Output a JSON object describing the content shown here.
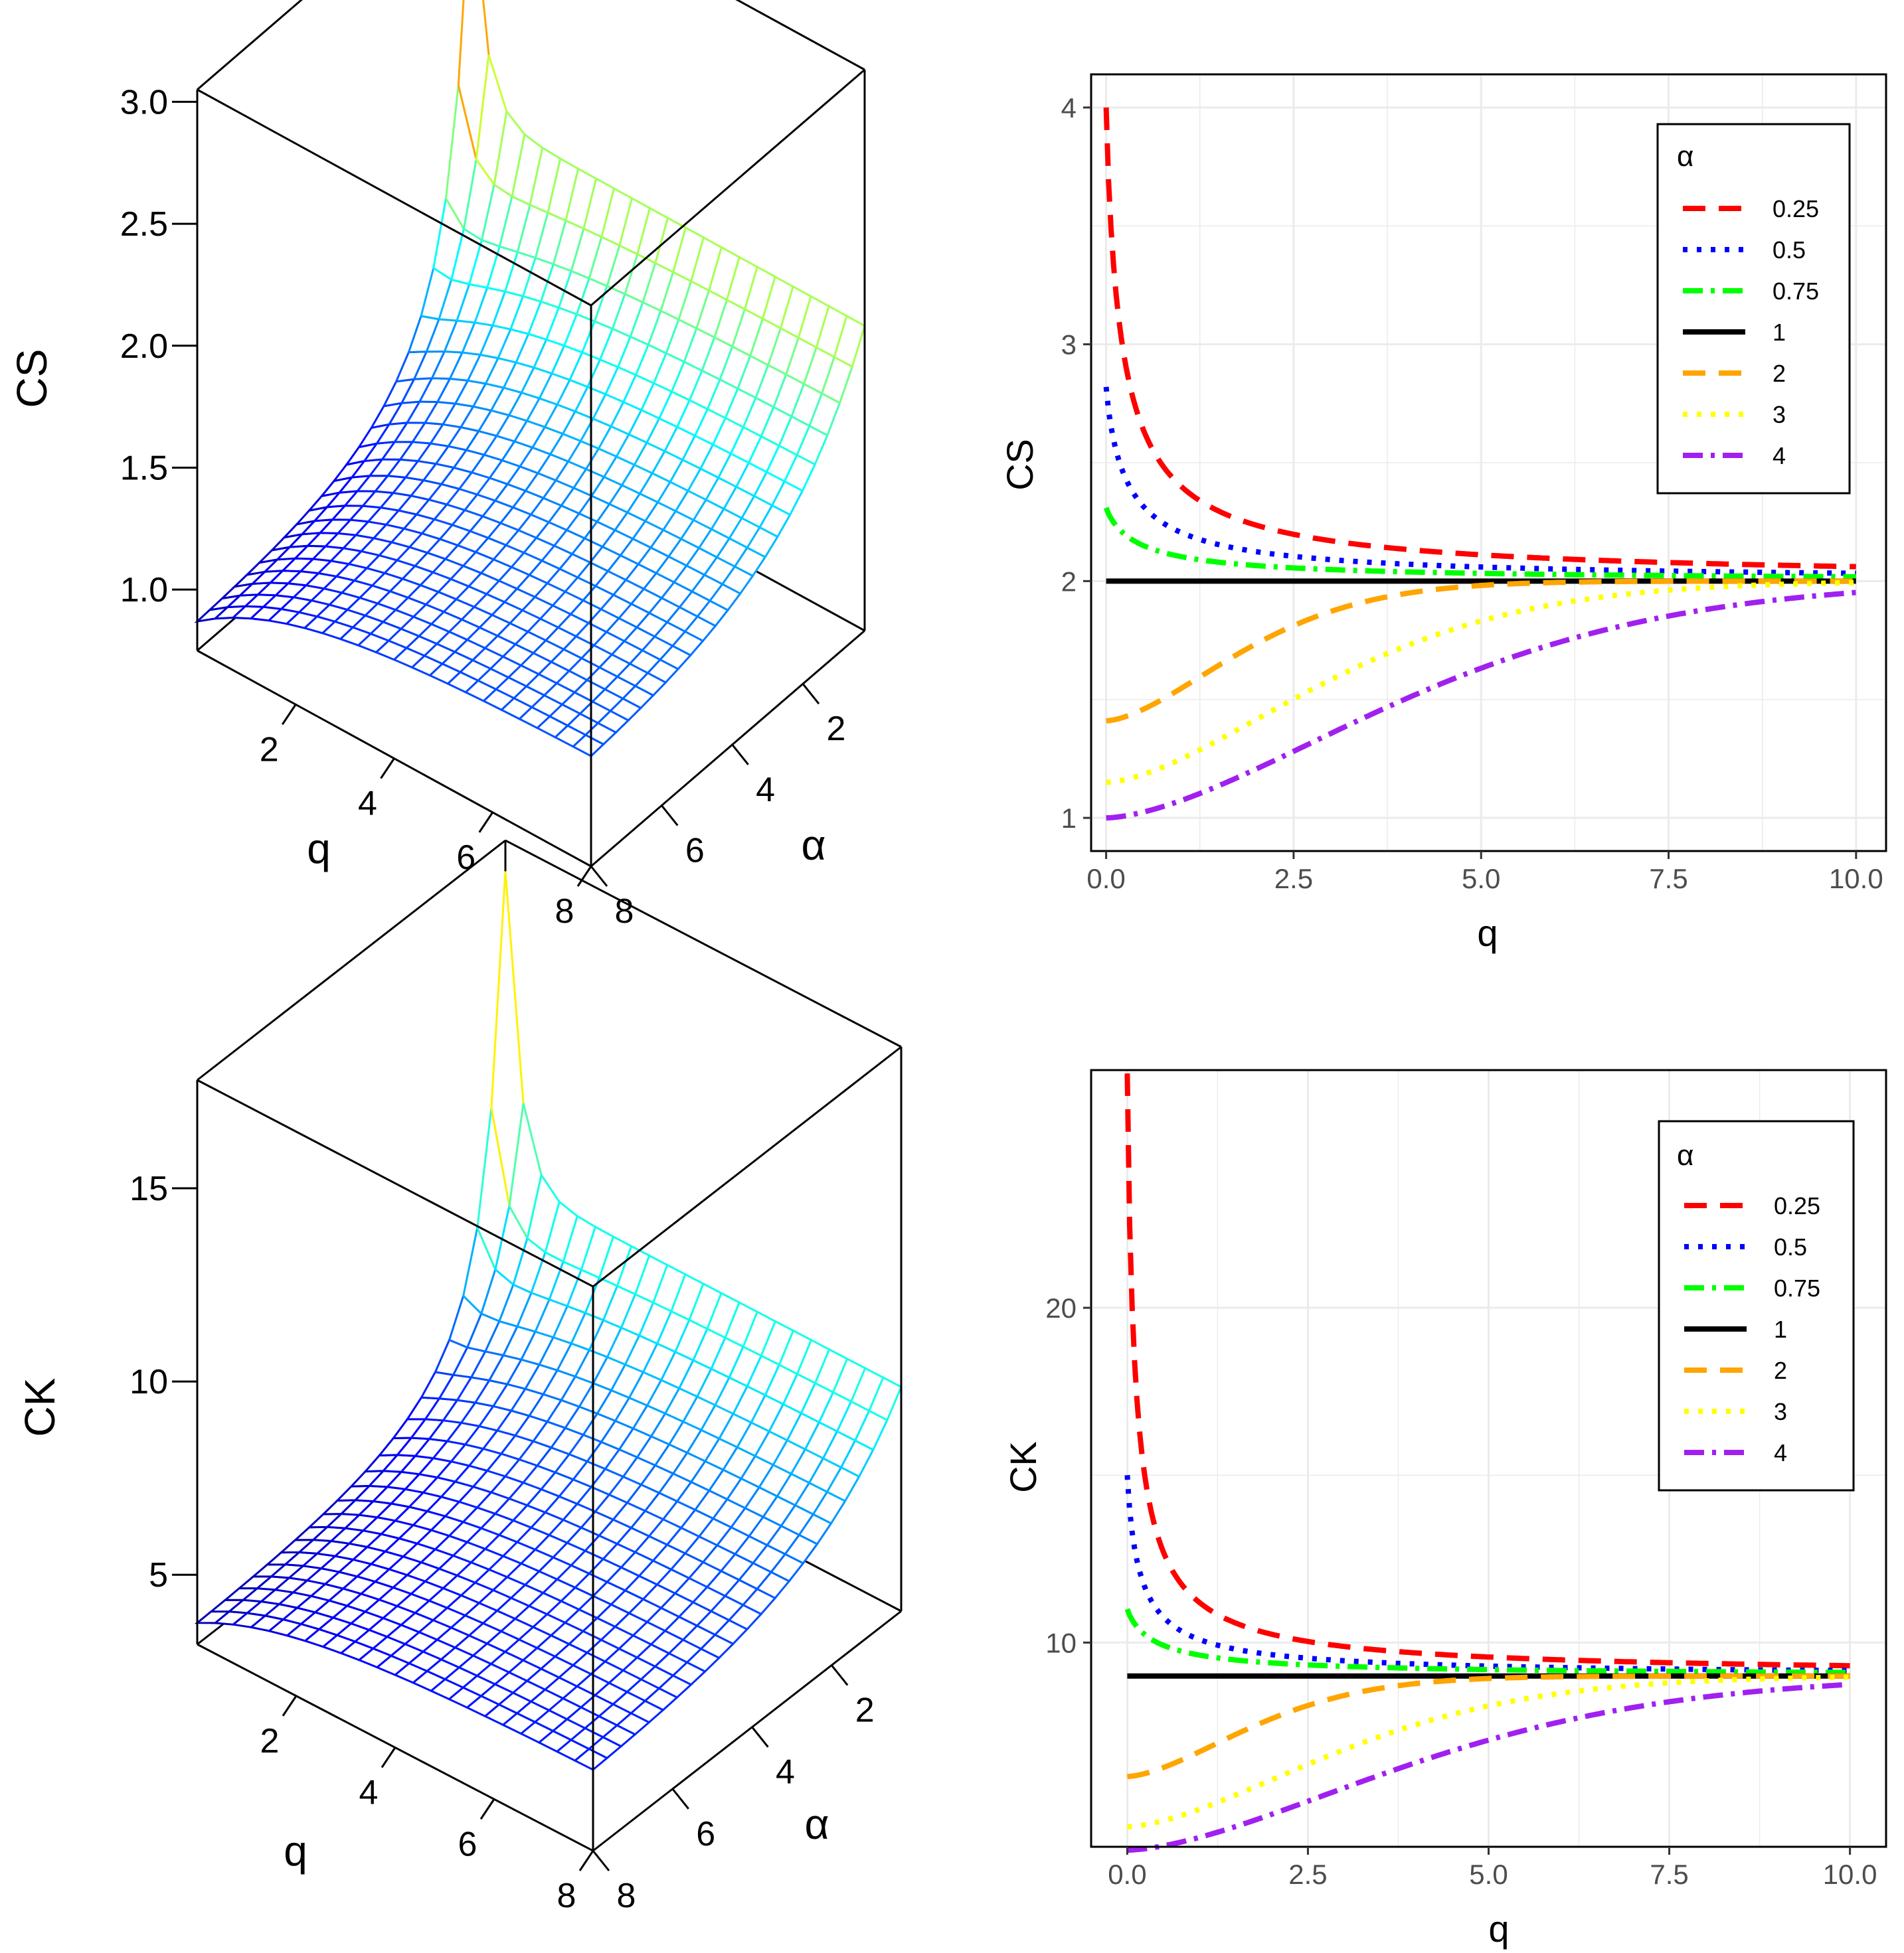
{
  "chart_data": [
    {
      "id": "cs3d",
      "type": "surface",
      "zlabel": "CS",
      "xlabel": "q",
      "ylabel": "α",
      "z_ticks": [
        "1.0",
        "1.5",
        "2.0",
        "2.5",
        "3.0"
      ],
      "z_tick_values": [
        1.0,
        1.5,
        2.0,
        2.5,
        3.0
      ],
      "zlim": [
        0.75,
        3.05
      ],
      "q_ticks": [
        "2",
        "4",
        "6",
        "8"
      ],
      "alpha_ticks": [
        "2",
        "4",
        "6",
        "8"
      ],
      "q_range": [
        0,
        8
      ],
      "alpha_range": [
        0.25,
        8
      ],
      "z_peak": 2.95,
      "z_plateau": 2.0,
      "z_low": 0.75
    },
    {
      "id": "cs2d",
      "type": "line",
      "xlabel": "q",
      "ylabel": "CS",
      "xlim": [
        -0.2,
        10.4
      ],
      "ylim": [
        0.86,
        4.14
      ],
      "x_ticks": [
        "0.0",
        "2.5",
        "5.0",
        "7.5",
        "10.0"
      ],
      "x_tick_values": [
        0,
        2.5,
        5,
        7.5,
        10
      ],
      "y_ticks": [
        "1",
        "2",
        "3",
        "4"
      ],
      "y_tick_values": [
        1,
        2,
        3,
        4
      ],
      "legend_title": "α",
      "legend_position": "top-right",
      "limit": 2,
      "series": [
        {
          "name": "0.25",
          "start": 4.0,
          "shape": "decay",
          "rate": 4.0,
          "color": "#ff0000",
          "dash": "34 20"
        },
        {
          "name": "0.5",
          "start": 2.82,
          "shape": "decay",
          "rate": 3.0,
          "color": "#0000ff",
          "dash": "7 14"
        },
        {
          "name": "0.75",
          "start": 2.31,
          "shape": "decay",
          "rate": 2.0,
          "color": "#00ff00",
          "dash": "30 12 6 12"
        },
        {
          "name": "1",
          "start": 2.0,
          "shape": "flat",
          "rate": 0,
          "color": "#000000",
          "dash": ""
        },
        {
          "name": "2",
          "start": 1.41,
          "shape": "rise",
          "rate": 2.3,
          "color": "#ffa500",
          "dash": "34 20"
        },
        {
          "name": "3",
          "start": 1.15,
          "shape": "rise",
          "rate": 3.7,
          "color": "#ffff00",
          "dash": "7 14"
        },
        {
          "name": "4",
          "start": 1.0,
          "shape": "rise",
          "rate": 5.0,
          "color": "#a020f0",
          "dash": "30 12 6 12"
        }
      ]
    },
    {
      "id": "ck3d",
      "type": "surface",
      "zlabel": "CK",
      "xlabel": "q",
      "ylabel": "α",
      "z_ticks": [
        "5",
        "10",
        "15"
      ],
      "z_tick_values": [
        5,
        10,
        15
      ],
      "zlim": [
        3.2,
        17.8
      ],
      "q_ticks": [
        "2",
        "4",
        "6",
        "8"
      ],
      "alpha_ticks": [
        "2",
        "4",
        "6",
        "8"
      ],
      "q_range": [
        0,
        8
      ],
      "alpha_range": [
        0.25,
        8
      ],
      "z_peak": 17.0,
      "z_plateau": 9.0,
      "z_low": 3.2
    },
    {
      "id": "ck2d",
      "type": "line",
      "xlabel": "q",
      "ylabel": "CK",
      "xlim": [
        -0.5,
        10.5
      ],
      "ylim": [
        3.9,
        27.1
      ],
      "x_ticks": [
        "0.0",
        "2.5",
        "5.0",
        "7.5",
        "10.0"
      ],
      "x_tick_values": [
        0,
        2.5,
        5,
        7.5,
        10
      ],
      "y_ticks": [
        "10",
        "20"
      ],
      "y_tick_values": [
        10,
        20
      ],
      "legend_title": "α",
      "legend_position": "top-right",
      "limit": 9,
      "series": [
        {
          "name": "0.25",
          "start": 27.0,
          "shape": "decay",
          "rate": 7.2,
          "color": "#ff0000",
          "dash": "34 20"
        },
        {
          "name": "0.5",
          "start": 15.0,
          "shape": "decay",
          "rate": 4.5,
          "color": "#0000ff",
          "dash": "7 14"
        },
        {
          "name": "0.75",
          "start": 11.0,
          "shape": "decay",
          "rate": 2.2,
          "color": "#00ff00",
          "dash": "30 12 6 12"
        },
        {
          "name": "1",
          "start": 9.0,
          "shape": "flat",
          "rate": 0,
          "color": "#000000",
          "dash": ""
        },
        {
          "name": "2",
          "start": 6.0,
          "shape": "rise",
          "rate": 2.2,
          "color": "#ffa500",
          "dash": "34 20"
        },
        {
          "name": "3",
          "start": 4.5,
          "shape": "rise",
          "rate": 3.7,
          "color": "#ffff00",
          "dash": "7 14"
        },
        {
          "name": "4",
          "start": 3.8,
          "shape": "rise",
          "rate": 5.0,
          "color": "#a020f0",
          "dash": "30 12 6 12"
        }
      ]
    }
  ]
}
